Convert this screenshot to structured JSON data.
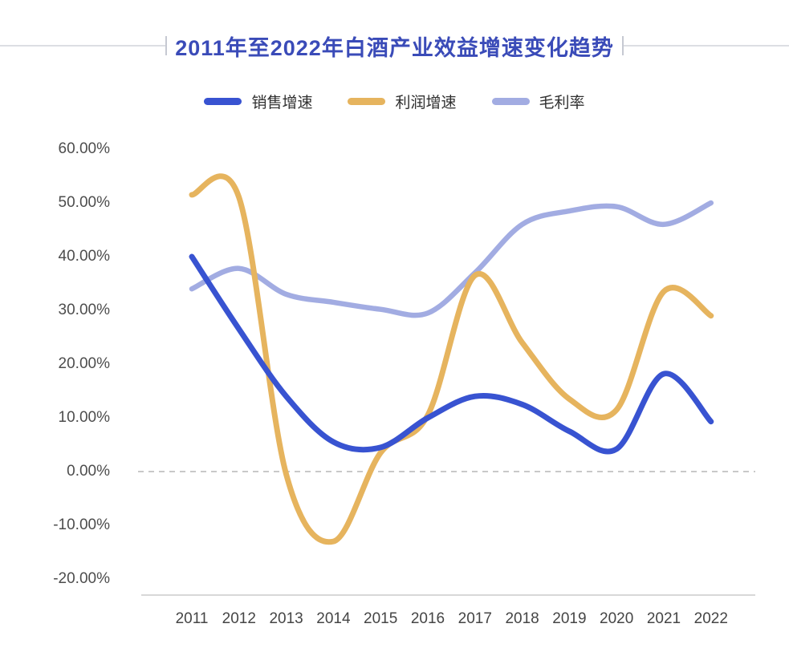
{
  "title": {
    "text": "2011年至2022年白酒产业效益增速变化趋势"
  },
  "chart_data": {
    "type": "line",
    "smooth": true,
    "title": "2011年至2022年白酒产业效益增速变化趋势",
    "legend_position": "top",
    "x_categories": [
      "2011",
      "2012",
      "2013",
      "2014",
      "2015",
      "2016",
      "2017",
      "2018",
      "2019",
      "2020",
      "2021",
      "2022"
    ],
    "y_axis": {
      "min": -20,
      "max": 60,
      "tick_step": 10,
      "format": "percent",
      "tick_labels": [
        "60.00%",
        "50.00%",
        "40.00%",
        "30.00%",
        "20.00%",
        "10.00%",
        "0.00%",
        "-10.00%",
        "-20.00%"
      ]
    },
    "grid": {
      "zero_line_dashed": true,
      "horizontal_gridlines": false
    },
    "series": [
      {
        "name": "销售增速",
        "color": "#3853d1",
        "values": [
          40.0,
          26.5,
          14.0,
          5.5,
          4.5,
          10.0,
          14.0,
          12.5,
          7.5,
          4.2,
          18.2,
          9.3
        ]
      },
      {
        "name": "利润增速",
        "color": "#e6b45e",
        "values": [
          51.5,
          51.0,
          -0.5,
          -13.0,
          3.5,
          10.5,
          36.5,
          24.0,
          13.5,
          11.5,
          33.5,
          29.0
        ]
      },
      {
        "name": "毛利率",
        "color": "#a2ace2",
        "values": [
          34.0,
          37.8,
          33.0,
          31.5,
          30.2,
          29.5,
          37.0,
          46.0,
          48.5,
          49.3,
          46.0,
          50.0
        ]
      }
    ],
    "colors": {
      "sales": "#3853d1",
      "profit": "#e6b45e",
      "margin": "#a2ace2",
      "title": "#3a4bb8",
      "zero_line": "#b5b5b5",
      "axis_line": "#d8d8d8"
    }
  }
}
